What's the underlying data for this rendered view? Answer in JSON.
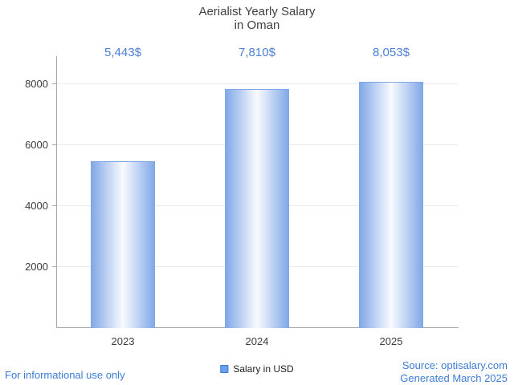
{
  "title": {
    "line1": "Aerialist Yearly Salary",
    "line2": "in Oman"
  },
  "chart_data": {
    "type": "bar",
    "title": "Aerialist Yearly Salary in Oman",
    "categories": [
      "2023",
      "2024",
      "2025"
    ],
    "values": [
      5443,
      7810,
      8053
    ],
    "value_labels": [
      "5,443$",
      "7,810$",
      "8,053$"
    ],
    "xlabel": "",
    "ylabel": "",
    "ylim": [
      0,
      8900
    ],
    "yticks": [
      2000,
      4000,
      6000,
      8000
    ],
    "grid": true,
    "legend_entries": [
      "Salary in USD"
    ],
    "legend_position": "bottom",
    "bar_edge_color": "#7fa6e6",
    "bar_center_color": "#f9fbff"
  },
  "legend": {
    "label": "Salary in USD"
  },
  "footer": {
    "left": "For informational use only",
    "source": "Source: optisalary.com",
    "generated": "Generated March 2025"
  },
  "colors": {
    "accent_text": "#4a7fd4",
    "link_text": "#3d7cd6",
    "axis": "#a8a8a8",
    "gridline": "#e9e9e9",
    "title_text": "#3f3f3f",
    "legend_marker_fill": "#6d9eeb",
    "legend_marker_border": "#3d7cd6"
  }
}
